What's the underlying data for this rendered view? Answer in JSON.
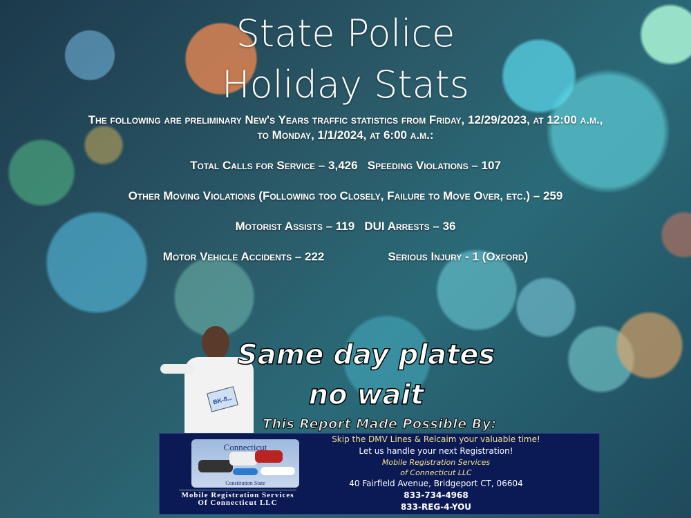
{
  "title": {
    "line1": "State Police",
    "line2": "Holiday Stats"
  },
  "intro": {
    "line1": "The following are preliminary New's Years traffic statistics from Friday, 12/29/2023, at 12:00 a.m.,",
    "line2": "to Monday, 1/1/2024, at 6:00 a.m.:"
  },
  "stats": {
    "calls": "Total Calls for Service – 3,426",
    "speeding": "Speeding Violations – 107",
    "other": "Other Moving Violations (Following too Closely, Failure to Move Over, etc.) – 259",
    "assists": "Motorist Assists – 119",
    "dui": "DUI Arrests – 36",
    "accidents": "Motor Vehicle Accidents – 222",
    "injury": "Serious Injury - 1 (Oxford)"
  },
  "ad": {
    "headline1": "Same day plates",
    "headline2": "no wait",
    "sponsor": "This Report Made Possible By:",
    "logo_state": "Connecticut",
    "logo_motto": "Constitution State",
    "logo_plate": "BK-8...",
    "logo_name": "Mobile Registration Services Of Connecticut LLC",
    "tagline": "Skip the DMV Lines & Relcaim your valuable time!",
    "cta": "Let us handle your next Registration!",
    "company1": "Mobile Registration Services",
    "company2": "of Connecticut LLC",
    "address": "40 Fairfield Avenue, Bridgeport CT, 06604",
    "phone": "833-734-4968",
    "vanity": "833-REG-4-YOU"
  }
}
